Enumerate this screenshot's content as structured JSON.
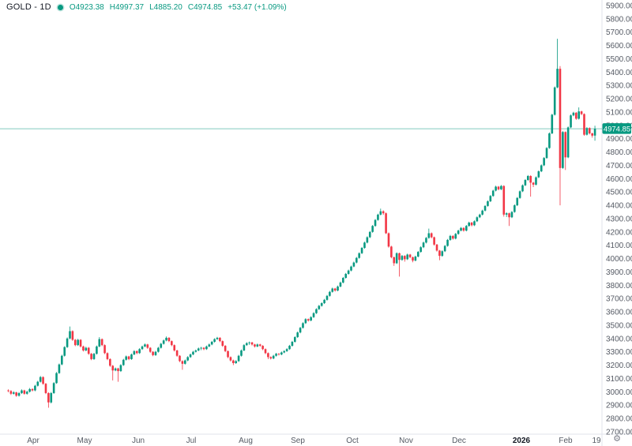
{
  "header": {
    "symbol": "GOLD - 1D",
    "open": "O4923.38",
    "high": "H4997.37",
    "low": "L4885.20",
    "close": "C4974.85",
    "change": "+53.47 (+1.09%)"
  },
  "colors": {
    "up": "#089981",
    "down": "#f23645",
    "axis_text": "#555a64",
    "title_text": "#131722",
    "border": "#e0e3eb",
    "badge_bg": "#089981",
    "badge_text": "#ffffff",
    "background": "#ffffff",
    "gear": "#787b86"
  },
  "gear_glyph": "⚙",
  "chart_data": {
    "type": "candlestick",
    "symbol": "GOLD",
    "timeframe": "1D",
    "last_price": 4974.85,
    "last_price_label": "4974.85",
    "price_range": [
      2700,
      5900
    ],
    "grid": false,
    "price_ticks": [
      5900,
      5800,
      5700,
      5600,
      5500,
      5400,
      5300,
      5200,
      5100,
      5000,
      4900,
      4800,
      4700,
      4600,
      4500,
      4400,
      4300,
      4200,
      4100,
      4000,
      3900,
      3800,
      3700,
      3600,
      3500,
      3400,
      3300,
      3200,
      3100,
      3000,
      2900,
      2800,
      2700
    ],
    "x_ticks": [
      {
        "label": "Apr",
        "x": 42
      },
      {
        "label": "May",
        "x": 107
      },
      {
        "label": "Jun",
        "x": 175
      },
      {
        "label": "Jul",
        "x": 242
      },
      {
        "label": "Aug",
        "x": 311
      },
      {
        "label": "Sep",
        "x": 377
      },
      {
        "label": "Oct",
        "x": 446
      },
      {
        "label": "Nov",
        "x": 514
      },
      {
        "label": "Dec",
        "x": 581
      },
      {
        "label": "2026",
        "x": 660,
        "bold": true
      },
      {
        "label": "Feb",
        "x": 716
      },
      {
        "label": "19",
        "x": 755
      }
    ],
    "candles_format": [
      "open",
      "high",
      "low",
      "close"
    ],
    "candles": [
      [
        3010,
        3018,
        2996,
        3005
      ],
      [
        3005,
        3012,
        2976,
        2985
      ],
      [
        2985,
        3004,
        2979,
        2995
      ],
      [
        2995,
        3000,
        2962,
        2970
      ],
      [
        2970,
        2998,
        2964,
        2990
      ],
      [
        2990,
        3018,
        2984,
        3010
      ],
      [
        3010,
        3015,
        2978,
        2985
      ],
      [
        2985,
        3008,
        2978,
        3000
      ],
      [
        3000,
        3028,
        2994,
        3020
      ],
      [
        3020,
        3026,
        3002,
        3010
      ],
      [
        3010,
        3052,
        3004,
        3045
      ],
      [
        3045,
        3082,
        3039,
        3075
      ],
      [
        3075,
        3118,
        3069,
        3110
      ],
      [
        3110,
        3116,
        3052,
        3060
      ],
      [
        3060,
        3066,
        2982,
        2990
      ],
      [
        2990,
        2996,
        2880,
        2920
      ],
      [
        2920,
        2998,
        2912,
        2990
      ],
      [
        2990,
        3072,
        2984,
        3065
      ],
      [
        3065,
        3148,
        3059,
        3140
      ],
      [
        3140,
        3212,
        3134,
        3205
      ],
      [
        3205,
        3278,
        3199,
        3270
      ],
      [
        3270,
        3342,
        3264,
        3335
      ],
      [
        3335,
        3408,
        3329,
        3400
      ],
      [
        3400,
        3490,
        3394,
        3455
      ],
      [
        3455,
        3461,
        3382,
        3390
      ],
      [
        3390,
        3396,
        3342,
        3350
      ],
      [
        3350,
        3397,
        3344,
        3390
      ],
      [
        3390,
        3395,
        3332,
        3340
      ],
      [
        3340,
        3346,
        3302,
        3310
      ],
      [
        3310,
        3338,
        3304,
        3330
      ],
      [
        3330,
        3336,
        3277,
        3285
      ],
      [
        3285,
        3291,
        3237,
        3245
      ],
      [
        3245,
        3292,
        3239,
        3285
      ],
      [
        3285,
        3347,
        3279,
        3340
      ],
      [
        3340,
        3410,
        3334,
        3395
      ],
      [
        3395,
        3400,
        3342,
        3350
      ],
      [
        3350,
        3356,
        3282,
        3290
      ],
      [
        3290,
        3296,
        3237,
        3245
      ],
      [
        3245,
        3251,
        3187,
        3195
      ],
      [
        3195,
        3201,
        3085,
        3160
      ],
      [
        3160,
        3182,
        3154,
        3175
      ],
      [
        3175,
        3180,
        3075,
        3155
      ],
      [
        3155,
        3207,
        3149,
        3200
      ],
      [
        3200,
        3247,
        3194,
        3240
      ],
      [
        3240,
        3272,
        3234,
        3265
      ],
      [
        3265,
        3270,
        3237,
        3245
      ],
      [
        3245,
        3287,
        3239,
        3280
      ],
      [
        3280,
        3312,
        3274,
        3305
      ],
      [
        3305,
        3310,
        3282,
        3290
      ],
      [
        3290,
        3327,
        3284,
        3320
      ],
      [
        3320,
        3347,
        3314,
        3340
      ],
      [
        3340,
        3362,
        3334,
        3355
      ],
      [
        3355,
        3360,
        3322,
        3330
      ],
      [
        3330,
        3335,
        3292,
        3300
      ],
      [
        3300,
        3305,
        3267,
        3275
      ],
      [
        3275,
        3307,
        3269,
        3300
      ],
      [
        3300,
        3337,
        3294,
        3330
      ],
      [
        3330,
        3367,
        3324,
        3360
      ],
      [
        3360,
        3392,
        3354,
        3385
      ],
      [
        3385,
        3415,
        3379,
        3405
      ],
      [
        3405,
        3410,
        3372,
        3380
      ],
      [
        3380,
        3385,
        3342,
        3350
      ],
      [
        3350,
        3355,
        3302,
        3310
      ],
      [
        3310,
        3315,
        3262,
        3270
      ],
      [
        3270,
        3275,
        3222,
        3230
      ],
      [
        3230,
        3236,
        3165,
        3210
      ],
      [
        3210,
        3242,
        3204,
        3235
      ],
      [
        3235,
        3267,
        3229,
        3260
      ],
      [
        3260,
        3287,
        3254,
        3280
      ],
      [
        3280,
        3307,
        3274,
        3300
      ],
      [
        3300,
        3317,
        3294,
        3310
      ],
      [
        3310,
        3332,
        3304,
        3325
      ],
      [
        3325,
        3337,
        3312,
        3330
      ],
      [
        3330,
        3335,
        3312,
        3320
      ],
      [
        3320,
        3347,
        3314,
        3340
      ],
      [
        3340,
        3362,
        3334,
        3355
      ],
      [
        3355,
        3382,
        3349,
        3375
      ],
      [
        3375,
        3402,
        3369,
        3395
      ],
      [
        3395,
        3412,
        3389,
        3405
      ],
      [
        3405,
        3410,
        3372,
        3380
      ],
      [
        3380,
        3385,
        3337,
        3345
      ],
      [
        3345,
        3350,
        3297,
        3305
      ],
      [
        3305,
        3310,
        3252,
        3260
      ],
      [
        3260,
        3265,
        3227,
        3235
      ],
      [
        3235,
        3241,
        3200,
        3215
      ],
      [
        3215,
        3237,
        3209,
        3230
      ],
      [
        3230,
        3277,
        3224,
        3270
      ],
      [
        3270,
        3317,
        3264,
        3310
      ],
      [
        3310,
        3357,
        3304,
        3350
      ],
      [
        3350,
        3372,
        3344,
        3365
      ],
      [
        3365,
        3377,
        3352,
        3370
      ],
      [
        3370,
        3375,
        3347,
        3355
      ],
      [
        3355,
        3360,
        3332,
        3340
      ],
      [
        3340,
        3362,
        3334,
        3355
      ],
      [
        3355,
        3360,
        3337,
        3345
      ],
      [
        3345,
        3350,
        3312,
        3320
      ],
      [
        3320,
        3325,
        3282,
        3290
      ],
      [
        3290,
        3295,
        3245,
        3260
      ],
      [
        3260,
        3266,
        3242,
        3250
      ],
      [
        3250,
        3277,
        3244,
        3270
      ],
      [
        3270,
        3292,
        3264,
        3285
      ],
      [
        3285,
        3290,
        3272,
        3280
      ],
      [
        3280,
        3302,
        3274,
        3295
      ],
      [
        3295,
        3312,
        3289,
        3305
      ],
      [
        3305,
        3327,
        3299,
        3320
      ],
      [
        3320,
        3352,
        3314,
        3345
      ],
      [
        3345,
        3382,
        3339,
        3375
      ],
      [
        3375,
        3417,
        3369,
        3410
      ],
      [
        3410,
        3452,
        3404,
        3445
      ],
      [
        3445,
        3487,
        3439,
        3480
      ],
      [
        3480,
        3522,
        3474,
        3515
      ],
      [
        3515,
        3552,
        3509,
        3545
      ],
      [
        3545,
        3550,
        3527,
        3535
      ],
      [
        3535,
        3567,
        3529,
        3560
      ],
      [
        3560,
        3597,
        3554,
        3590
      ],
      [
        3590,
        3627,
        3584,
        3620
      ],
      [
        3620,
        3652,
        3614,
        3645
      ],
      [
        3645,
        3672,
        3639,
        3665
      ],
      [
        3665,
        3697,
        3659,
        3690
      ],
      [
        3690,
        3727,
        3684,
        3720
      ],
      [
        3720,
        3757,
        3714,
        3750
      ],
      [
        3750,
        3782,
        3744,
        3775
      ],
      [
        3775,
        3780,
        3752,
        3760
      ],
      [
        3760,
        3797,
        3754,
        3790
      ],
      [
        3790,
        3827,
        3784,
        3820
      ],
      [
        3820,
        3862,
        3814,
        3855
      ],
      [
        3855,
        3892,
        3849,
        3885
      ],
      [
        3885,
        3917,
        3879,
        3910
      ],
      [
        3910,
        3947,
        3904,
        3940
      ],
      [
        3940,
        3977,
        3934,
        3970
      ],
      [
        3970,
        4012,
        3964,
        4005
      ],
      [
        4005,
        4047,
        3999,
        4040
      ],
      [
        4040,
        4087,
        4034,
        4080
      ],
      [
        4080,
        4127,
        4074,
        4120
      ],
      [
        4120,
        4167,
        4114,
        4160
      ],
      [
        4160,
        4207,
        4154,
        4200
      ],
      [
        4200,
        4252,
        4194,
        4245
      ],
      [
        4245,
        4297,
        4239,
        4290
      ],
      [
        4290,
        4337,
        4284,
        4330
      ],
      [
        4330,
        4375,
        4324,
        4355
      ],
      [
        4355,
        4362,
        4328,
        4340
      ],
      [
        4340,
        4346,
        4185,
        4190
      ],
      [
        4190,
        4196,
        4082,
        4090
      ],
      [
        4090,
        4096,
        4002,
        4010
      ],
      [
        4010,
        4015,
        3945,
        3965
      ],
      [
        3965,
        4047,
        3959,
        4040
      ],
      [
        4040,
        4045,
        3865,
        3990
      ],
      [
        3990,
        4027,
        3984,
        4020
      ],
      [
        4020,
        4025,
        3977,
        3995
      ],
      [
        3995,
        4037,
        3989,
        4030
      ],
      [
        4030,
        4035,
        4002,
        4010
      ],
      [
        4010,
        4015,
        3972,
        3985
      ],
      [
        3985,
        4022,
        3979,
        4015
      ],
      [
        4015,
        4057,
        4009,
        4050
      ],
      [
        4050,
        4092,
        4044,
        4085
      ],
      [
        4085,
        4127,
        4079,
        4120
      ],
      [
        4120,
        4162,
        4114,
        4155
      ],
      [
        4155,
        4225,
        4149,
        4190
      ],
      [
        4190,
        4196,
        4152,
        4160
      ],
      [
        4160,
        4165,
        4097,
        4105
      ],
      [
        4105,
        4110,
        4052,
        4060
      ],
      [
        4060,
        4065,
        3988,
        4020
      ],
      [
        4020,
        4062,
        4014,
        4055
      ],
      [
        4055,
        4102,
        4049,
        4095
      ],
      [
        4095,
        4147,
        4089,
        4140
      ],
      [
        4140,
        4177,
        4134,
        4170
      ],
      [
        4170,
        4175,
        4142,
        4150
      ],
      [
        4150,
        4192,
        4144,
        4185
      ],
      [
        4185,
        4217,
        4179,
        4210
      ],
      [
        4210,
        4237,
        4204,
        4230
      ],
      [
        4230,
        4235,
        4202,
        4210
      ],
      [
        4210,
        4252,
        4204,
        4245
      ],
      [
        4245,
        4277,
        4239,
        4270
      ],
      [
        4270,
        4275,
        4242,
        4250
      ],
      [
        4250,
        4287,
        4244,
        4280
      ],
      [
        4280,
        4317,
        4274,
        4310
      ],
      [
        4310,
        4337,
        4304,
        4330
      ],
      [
        4330,
        4367,
        4324,
        4360
      ],
      [
        4360,
        4402,
        4354,
        4395
      ],
      [
        4395,
        4437,
        4389,
        4430
      ],
      [
        4430,
        4477,
        4424,
        4470
      ],
      [
        4470,
        4517,
        4464,
        4510
      ],
      [
        4510,
        4547,
        4504,
        4540
      ],
      [
        4540,
        4545,
        4512,
        4520
      ],
      [
        4520,
        4552,
        4514,
        4545
      ],
      [
        4545,
        4550,
        4315,
        4330
      ],
      [
        4330,
        4347,
        4312,
        4340
      ],
      [
        4340,
        4345,
        4245,
        4310
      ],
      [
        4310,
        4357,
        4304,
        4350
      ],
      [
        4350,
        4407,
        4344,
        4400
      ],
      [
        4400,
        4462,
        4394,
        4455
      ],
      [
        4455,
        4512,
        4449,
        4505
      ],
      [
        4505,
        4557,
        4499,
        4550
      ],
      [
        4550,
        4597,
        4544,
        4590
      ],
      [
        4590,
        4627,
        4584,
        4620
      ],
      [
        4620,
        4625,
        4465,
        4570
      ],
      [
        4570,
        4575,
        4537,
        4555
      ],
      [
        4555,
        4617,
        4549,
        4610
      ],
      [
        4610,
        4662,
        4604,
        4655
      ],
      [
        4655,
        4707,
        4649,
        4700
      ],
      [
        4700,
        4762,
        4694,
        4755
      ],
      [
        4755,
        4837,
        4749,
        4830
      ],
      [
        4830,
        4947,
        4824,
        4940
      ],
      [
        4940,
        5087,
        4934,
        5080
      ],
      [
        5080,
        5292,
        5074,
        5285
      ],
      [
        5285,
        5650,
        5279,
        5425
      ],
      [
        5425,
        5445,
        4400,
        4680
      ],
      [
        4680,
        4957,
        4674,
        4950
      ],
      [
        4950,
        4955,
        4665,
        4760
      ],
      [
        4760,
        4992,
        4754,
        4985
      ],
      [
        4985,
        5082,
        4979,
        5075
      ],
      [
        5075,
        5102,
        5069,
        5095
      ],
      [
        5095,
        5100,
        5042,
        5050
      ],
      [
        5050,
        5135,
        5044,
        5105
      ],
      [
        5105,
        5110,
        5077,
        5085
      ],
      [
        5085,
        5090,
        4922,
        4930
      ],
      [
        4930,
        4987,
        4924,
        4980
      ],
      [
        4980,
        4985,
        4932,
        4940
      ],
      [
        4940,
        4945,
        4908,
        4923
      ],
      [
        4923.38,
        4997.37,
        4885.2,
        4974.85
      ]
    ]
  }
}
